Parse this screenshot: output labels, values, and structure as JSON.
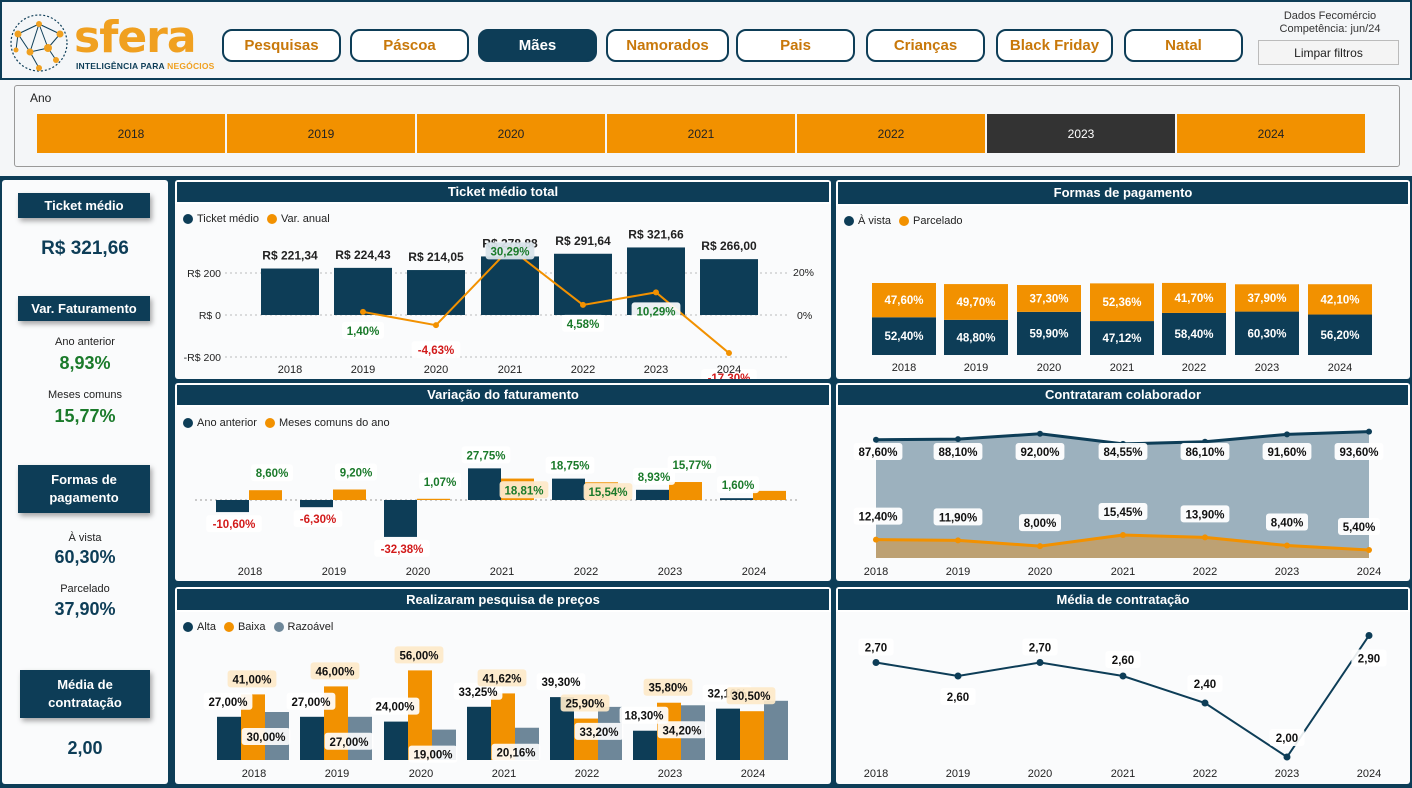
{
  "brand": {
    "name": "sfera",
    "tagline_a": "INTELIGÊNCIA PARA ",
    "tagline_b": "NEGÓCIOS"
  },
  "nav": {
    "items": [
      {
        "label": "Pesquisas",
        "active": false
      },
      {
        "label": "Páscoa",
        "active": false
      },
      {
        "label": "Mães",
        "active": true
      },
      {
        "label": "Namorados",
        "active": false
      },
      {
        "label": "Pais",
        "active": false
      },
      {
        "label": "Crianças",
        "active": false
      },
      {
        "label": "Black Friday",
        "active": false
      },
      {
        "label": "Natal",
        "active": false
      }
    ]
  },
  "info": {
    "source": "Dados Fecomércio",
    "competence": "Competência: jun/24",
    "clear_label": "Limpar filtros"
  },
  "year_filter": {
    "label": "Ano",
    "years": [
      "2018",
      "2019",
      "2020",
      "2021",
      "2022",
      "2023",
      "2024"
    ],
    "selected": "2023"
  },
  "kpis": {
    "ticket_title": "Ticket médio",
    "ticket_value": "R$ 321,66",
    "fat_title": "Var. Faturamento",
    "prev_label": "Ano anterior",
    "prev_value": "8,93%",
    "common_label": "Meses comuns",
    "common_value": "15,77%",
    "pay_title": "Formas de pagamento",
    "cash_label": "À vista",
    "cash_value": "60,30%",
    "inst_label": "Parcelado",
    "inst_value": "37,90%",
    "hire_title": "Média de contratação",
    "hire_value": "2,00"
  },
  "colors": {
    "navy": "#0d3d57",
    "orange": "#f29100",
    "slate": "#6e8799",
    "green": "#1a7a2a",
    "red": "#d21a1a"
  },
  "chart_data": [
    {
      "id": "ticket",
      "type": "bar",
      "title": "Ticket médio total",
      "categories": [
        "2018",
        "2019",
        "2020",
        "2021",
        "2022",
        "2023",
        "2024"
      ],
      "series": [
        {
          "name": "Ticket médio",
          "values": [
            221.34,
            224.43,
            214.05,
            278.88,
            291.64,
            321.66,
            266.0
          ],
          "labels": [
            "R$ 221,34",
            "R$ 224,43",
            "R$ 214,05",
            "R$ 278,88",
            "R$ 291,64",
            "R$ 321,66",
            "R$ 266,00"
          ]
        },
        {
          "name": "Var. anual",
          "values": [
            null,
            1.4,
            -4.63,
            30.29,
            4.58,
            10.29,
            -17.3
          ],
          "labels": [
            "",
            "1,40%",
            "-4,63%",
            "30,29%",
            "4,58%",
            "10,29%",
            "-17,30%"
          ]
        }
      ],
      "yticks_left": [
        "R$ 200",
        "R$ 0",
        "-R$ 200"
      ],
      "yticks_right": [
        "20%",
        "0%"
      ]
    },
    {
      "id": "pagamento",
      "type": "bar",
      "title": "Formas de pagamento",
      "categories": [
        "2018",
        "2019",
        "2020",
        "2021",
        "2022",
        "2023",
        "2024"
      ],
      "series": [
        {
          "name": "À vista",
          "values": [
            52.4,
            48.8,
            59.9,
            47.12,
            58.4,
            60.3,
            56.2
          ],
          "labels": [
            "52,40%",
            "48,80%",
            "59,90%",
            "47,12%",
            "58,40%",
            "60,30%",
            "56,20%"
          ]
        },
        {
          "name": "Parcelado",
          "values": [
            47.6,
            49.7,
            37.3,
            52.36,
            41.7,
            37.9,
            42.1
          ],
          "labels": [
            "47,60%",
            "49,70%",
            "37,30%",
            "52,36%",
            "41,70%",
            "37,90%",
            "42,10%"
          ]
        }
      ]
    },
    {
      "id": "faturamento",
      "type": "bar",
      "title": "Variação do faturamento",
      "categories": [
        "2018",
        "2019",
        "2020",
        "2021",
        "2022",
        "2023",
        "2024"
      ],
      "series": [
        {
          "name": "Ano anterior",
          "values": [
            -10.6,
            -6.3,
            -32.38,
            27.75,
            18.75,
            8.93,
            1.6
          ],
          "labels": [
            "-10,60%",
            "-6,30%",
            "-32,38%",
            "27,75%",
            "18,75%",
            "8,93%",
            "1,60%"
          ]
        },
        {
          "name": "Meses comuns do ano",
          "values": [
            8.6,
            9.2,
            1.07,
            18.81,
            15.54,
            15.77,
            8.0
          ],
          "labels": [
            "8,60%",
            "9,20%",
            "1,07%",
            "18,81%",
            "15,54%",
            "15,77%",
            ""
          ]
        }
      ]
    },
    {
      "id": "colaborador",
      "type": "area",
      "title": "Contrataram colaborador",
      "categories": [
        "2018",
        "2019",
        "2020",
        "2021",
        "2022",
        "2023",
        "2024"
      ],
      "series": [
        {
          "values": [
            87.6,
            88.1,
            92.0,
            84.55,
            86.1,
            91.6,
            93.6
          ],
          "labels": [
            "87,60%",
            "88,10%",
            "92,00%",
            "84,55%",
            "86,10%",
            "91,60%",
            "93,60%"
          ]
        },
        {
          "values": [
            12.4,
            11.9,
            8.0,
            15.45,
            13.9,
            8.4,
            5.4
          ],
          "labels": [
            "12,40%",
            "11,90%",
            "8,00%",
            "15,45%",
            "13,90%",
            "8,40%",
            "5,40%"
          ]
        }
      ]
    },
    {
      "id": "pesquisa",
      "type": "bar",
      "title": "Realizaram pesquisa de preços",
      "categories": [
        "2018",
        "2019",
        "2020",
        "2021",
        "2022",
        "2023",
        "2024"
      ],
      "series": [
        {
          "name": "Alta",
          "values": [
            27.0,
            27.0,
            24.0,
            33.25,
            39.3,
            18.3,
            32.1
          ],
          "labels": [
            "27,00%",
            "27,00%",
            "24,00%",
            "33,25%",
            "39,30%",
            "18,30%",
            "32,10%"
          ]
        },
        {
          "name": "Baixa",
          "values": [
            41.0,
            46.0,
            56.0,
            41.62,
            25.9,
            35.8,
            30.5
          ],
          "labels": [
            "41,00%",
            "46,00%",
            "56,00%",
            "41,62%",
            "25,90%",
            "35,80%",
            "30,50%"
          ]
        },
        {
          "name": "Razoável",
          "values": [
            30.0,
            27.0,
            19.0,
            20.16,
            33.2,
            34.2,
            37.0
          ],
          "labels": [
            "30,00%",
            "27,00%",
            "19,00%",
            "20,16%",
            "33,20%",
            "34,20%",
            ""
          ]
        }
      ]
    },
    {
      "id": "contratacao",
      "type": "line",
      "title": "Média de contratação",
      "categories": [
        "2018",
        "2019",
        "2020",
        "2021",
        "2022",
        "2023",
        "2024"
      ],
      "series": [
        {
          "values": [
            2.7,
            2.6,
            2.7,
            2.6,
            2.4,
            2.0,
            2.9
          ],
          "labels": [
            "2,70",
            "2,60",
            "2,70",
            "2,60",
            "2,40",
            "2,00",
            "2,90"
          ]
        }
      ]
    }
  ]
}
